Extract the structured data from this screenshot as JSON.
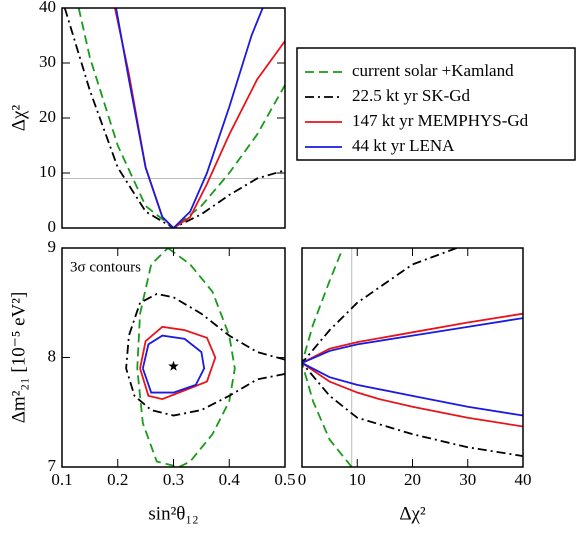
{
  "chart_data": [
    {
      "type": "line",
      "ylabel": "Δχ²",
      "xlim": [
        0.1,
        0.5
      ],
      "ylim": [
        0,
        40
      ],
      "yticks": [
        0,
        10,
        20,
        30,
        40
      ],
      "hline": 9,
      "series": [
        {
          "name": "current solar +Kamland",
          "color": "#1a9a1a",
          "dash": "dashed",
          "x": [
            0.13,
            0.15,
            0.2,
            0.25,
            0.3,
            0.35,
            0.4,
            0.45,
            0.5
          ],
          "values": [
            40,
            31,
            15,
            4,
            0,
            4,
            10,
            17,
            26
          ]
        },
        {
          "name": "22.5 kt yr SK-Gd",
          "color": "#000000",
          "dash": "dashdot",
          "x": [
            0.105,
            0.15,
            0.2,
            0.25,
            0.3,
            0.35,
            0.4,
            0.45,
            0.5
          ],
          "values": [
            40,
            25,
            11,
            3,
            0,
            2.5,
            6,
            9,
            10.5
          ]
        },
        {
          "name": "147 kt yr MEMPHYS-Gd",
          "color": "#e8141c",
          "dash": "solid",
          "x": [
            0.195,
            0.22,
            0.25,
            0.28,
            0.3,
            0.33,
            0.36,
            0.4,
            0.45,
            0.5
          ],
          "values": [
            40,
            28,
            11,
            2,
            0,
            2,
            8,
            17,
            27,
            34
          ]
        },
        {
          "name": "44 kt yr LENA",
          "color": "#1a1ae0",
          "dash": "solid",
          "x": [
            0.197,
            0.22,
            0.25,
            0.28,
            0.3,
            0.33,
            0.36,
            0.4,
            0.44,
            0.46
          ],
          "values": [
            40,
            27,
            11,
            2,
            0,
            3,
            10,
            22,
            35,
            40
          ]
        }
      ]
    },
    {
      "type": "contour",
      "xlabel": "sin²θ₁₂",
      "ylabel": "Δm²₂₁ [10⁻⁵ eV²]",
      "annotation": "3σ contours",
      "xlim": [
        0.1,
        0.5
      ],
      "ylim": [
        7,
        9
      ],
      "xticks": [
        0.1,
        0.2,
        0.3,
        0.4,
        0.5
      ],
      "yticks": [
        7,
        8,
        9
      ],
      "best_fit": {
        "x": 0.3,
        "y": 7.92
      },
      "series": [
        {
          "color": "#1a9a1a",
          "dash": "dashed",
          "x": [
            0.29,
            0.33,
            0.37,
            0.4,
            0.41,
            0.4,
            0.37,
            0.33,
            0.31,
            0.27,
            0.245,
            0.235,
            0.24,
            0.26,
            0.29
          ],
          "values": [
            9.0,
            8.85,
            8.6,
            8.2,
            7.9,
            7.6,
            7.3,
            7.05,
            7.0,
            7.05,
            7.4,
            7.9,
            8.4,
            8.85,
            9.0
          ]
        },
        {
          "color": "#000000",
          "dash": "dashdot",
          "x": [
            0.5,
            0.45,
            0.4,
            0.35,
            0.3,
            0.27,
            0.24,
            0.22,
            0.215,
            0.23,
            0.26,
            0.3,
            0.35,
            0.4,
            0.45,
            0.5
          ],
          "values": [
            7.98,
            8.05,
            8.2,
            8.4,
            8.55,
            8.58,
            8.5,
            8.2,
            7.9,
            7.65,
            7.52,
            7.47,
            7.52,
            7.65,
            7.8,
            7.85
          ]
        },
        {
          "color": "#e8141c",
          "dash": "solid",
          "x": [
            0.24,
            0.25,
            0.28,
            0.32,
            0.36,
            0.375,
            0.36,
            0.32,
            0.28,
            0.255,
            0.24
          ],
          "values": [
            7.9,
            8.15,
            8.28,
            8.25,
            8.18,
            8.0,
            7.78,
            7.7,
            7.62,
            7.65,
            7.9
          ]
        },
        {
          "color": "#1a1ae0",
          "dash": "solid",
          "x": [
            0.245,
            0.255,
            0.28,
            0.32,
            0.35,
            0.355,
            0.34,
            0.3,
            0.26,
            0.245
          ],
          "values": [
            7.9,
            8.12,
            8.2,
            8.17,
            8.05,
            7.9,
            7.75,
            7.68,
            7.68,
            7.9
          ]
        }
      ]
    },
    {
      "type": "line",
      "xlabel": "Δχ²",
      "xlim": [
        0,
        40
      ],
      "ylim": [
        7,
        9
      ],
      "xticks": [
        0,
        10,
        20,
        30,
        40
      ],
      "vline": 9,
      "series": [
        {
          "color": "#1a9a1a",
          "dash": "dashed",
          "x": [
            7,
            5,
            2,
            0,
            2,
            5,
            9
          ],
          "values": [
            8.95,
            8.7,
            8.3,
            7.95,
            7.6,
            7.25,
            7.0
          ]
        },
        {
          "color": "#000000",
          "dash": "dashdot",
          "x": [
            28,
            20,
            10,
            5,
            0,
            5,
            10,
            20,
            30,
            40
          ],
          "values": [
            9.0,
            8.85,
            8.5,
            8.25,
            7.95,
            7.65,
            7.45,
            7.3,
            7.18,
            7.1
          ]
        },
        {
          "color": "#e8141c",
          "dash": "solid",
          "x": [
            40,
            30,
            20,
            10,
            5,
            0,
            5,
            10,
            14,
            20,
            30,
            40
          ],
          "values": [
            8.4,
            8.32,
            8.23,
            8.14,
            8.08,
            7.95,
            7.78,
            7.68,
            7.62,
            7.55,
            7.45,
            7.37
          ]
        },
        {
          "color": "#1a1ae0",
          "dash": "solid",
          "x": [
            40,
            30,
            20,
            10,
            5,
            0,
            5,
            10,
            20,
            30,
            40
          ],
          "values": [
            8.36,
            8.28,
            8.2,
            8.12,
            8.06,
            7.95,
            7.82,
            7.75,
            7.65,
            7.55,
            7.47
          ]
        }
      ]
    }
  ]
}
